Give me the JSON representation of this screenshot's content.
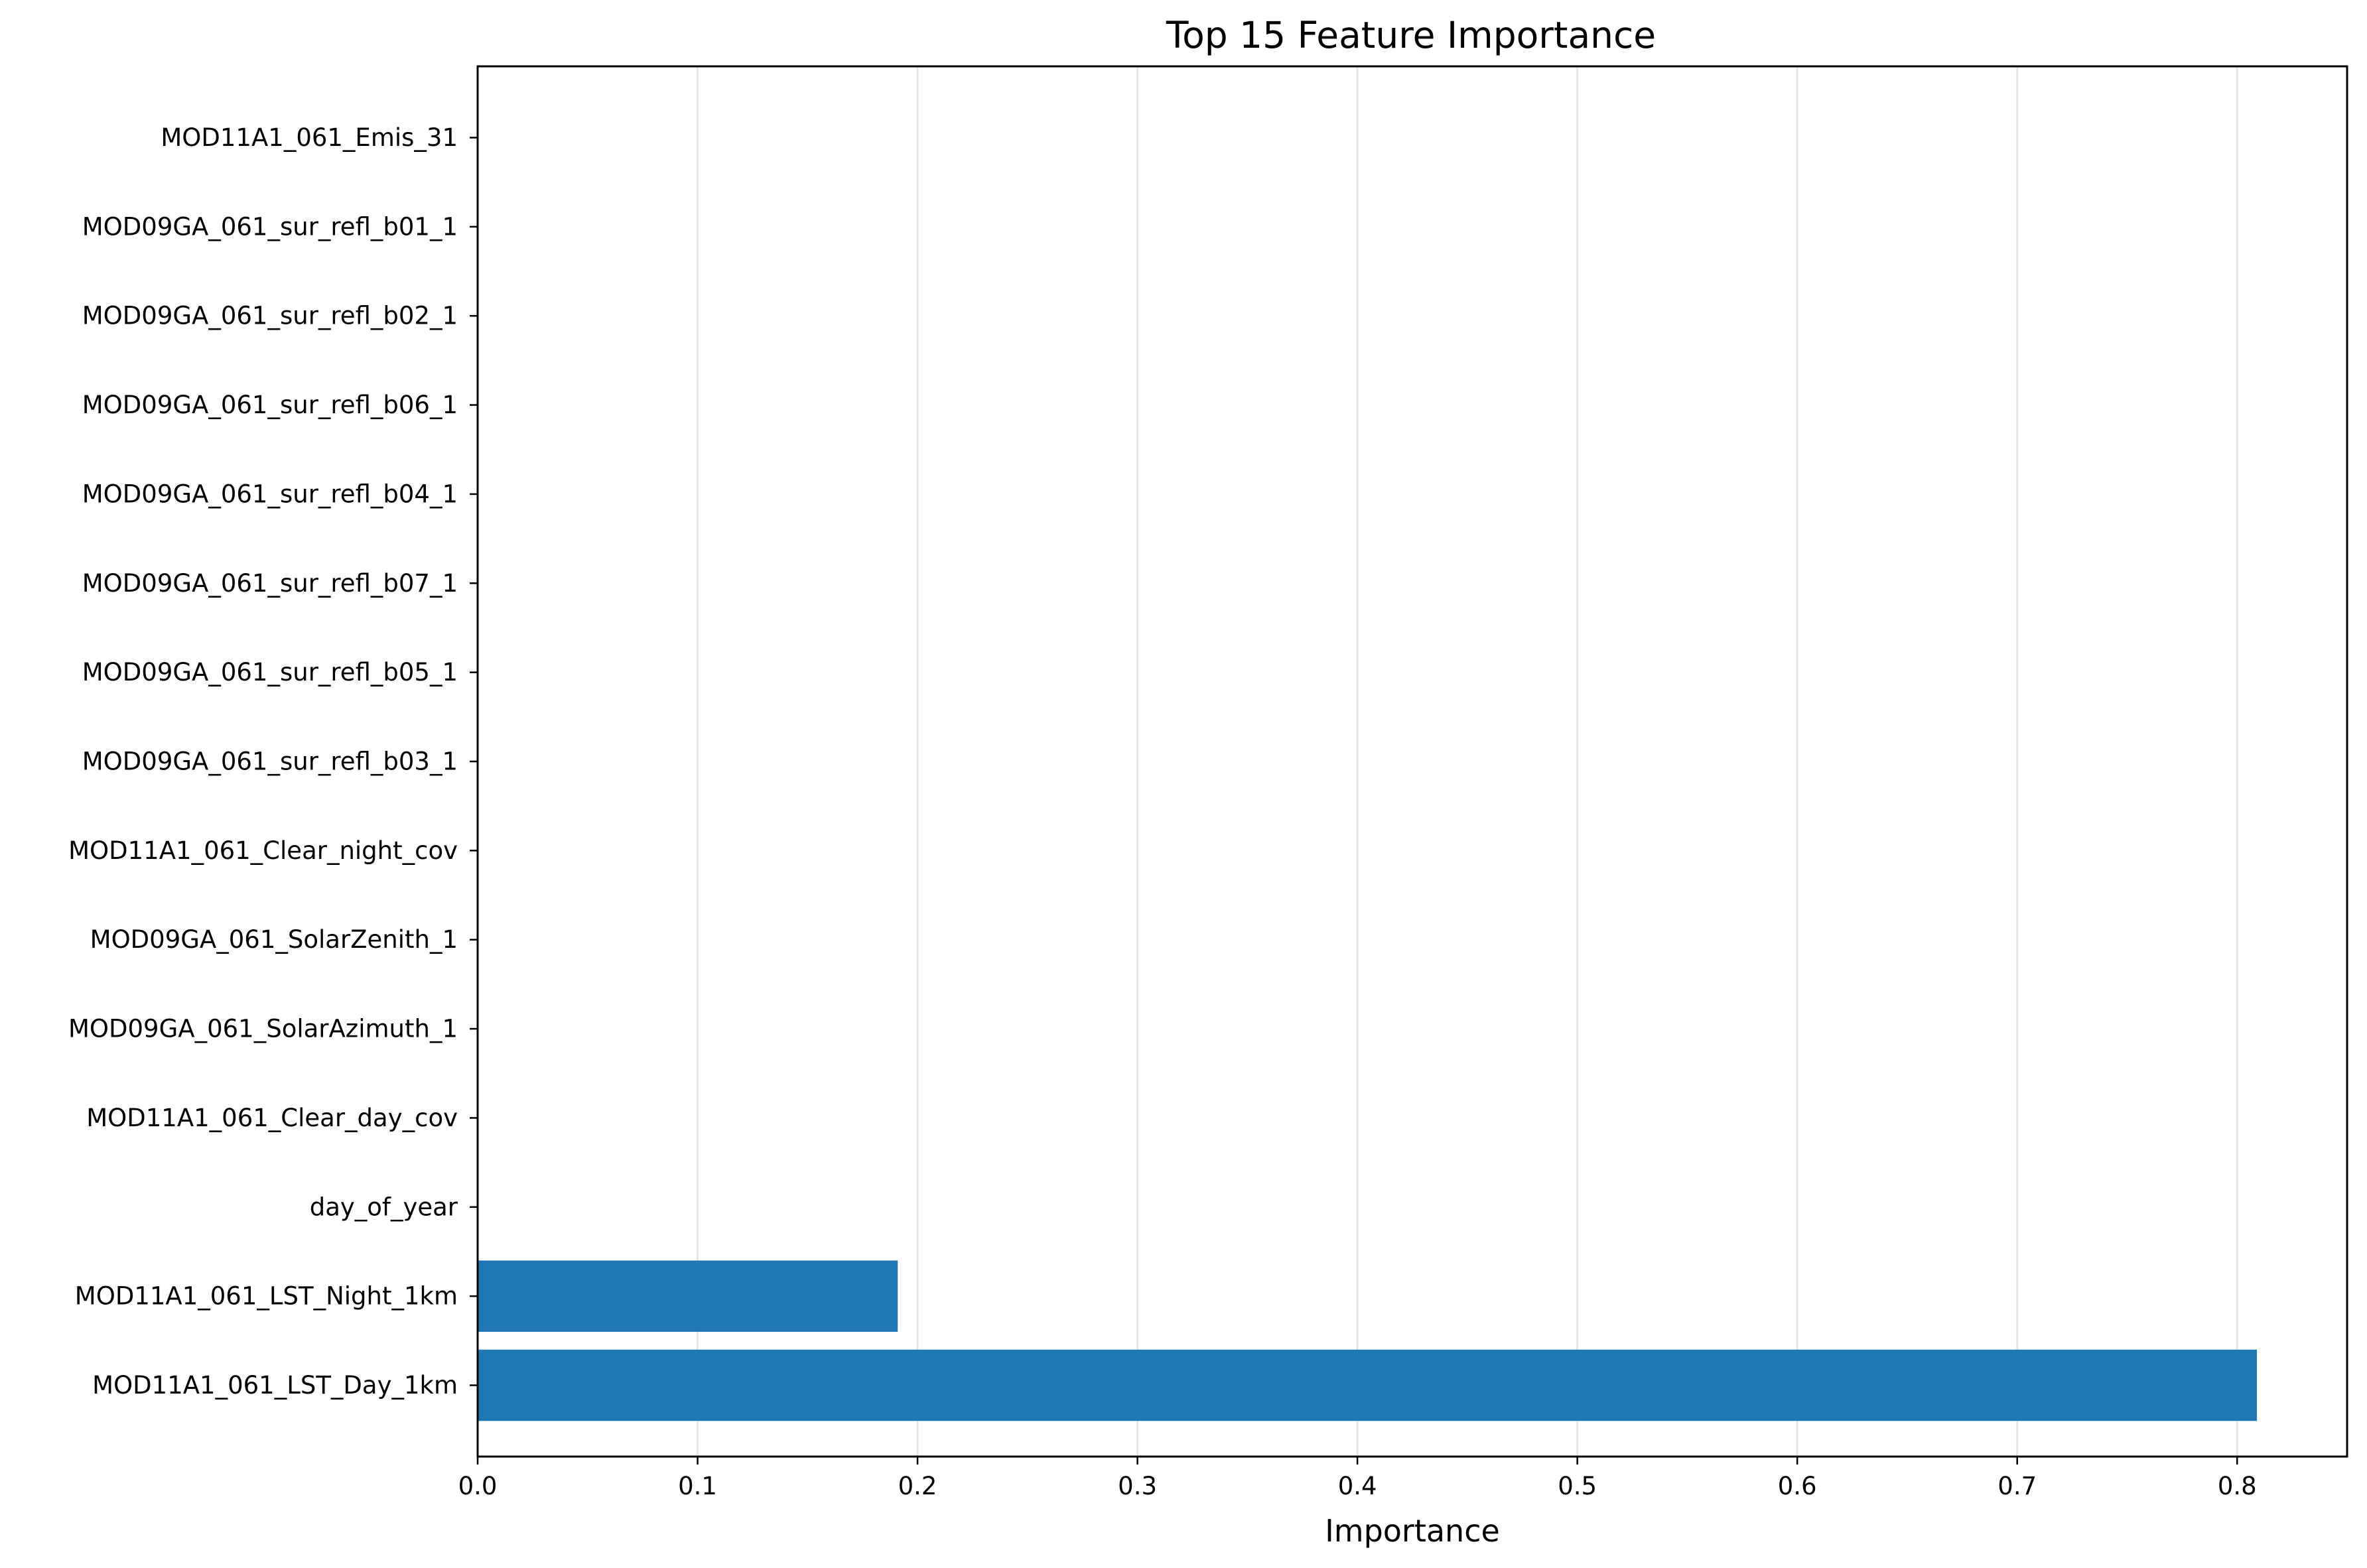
{
  "chart_data": {
    "type": "bar",
    "orientation": "horizontal",
    "title": "Top 15 Feature Importance",
    "xlabel": "Importance",
    "ylabel": "",
    "xlim": [
      0.0,
      0.85
    ],
    "xticks": [
      0.0,
      0.1,
      0.2,
      0.3,
      0.4,
      0.5,
      0.6,
      0.7,
      0.8
    ],
    "xtick_labels": [
      "0.0",
      "0.1",
      "0.2",
      "0.3",
      "0.4",
      "0.5",
      "0.6",
      "0.7",
      "0.8"
    ],
    "grid": "x",
    "bar_color": "#1f77b4",
    "categories": [
      "MOD11A1_061_LST_Day_1km",
      "MOD11A1_061_LST_Night_1km",
      "day_of_year",
      "MOD11A1_061_Clear_day_cov",
      "MOD09GA_061_SolarAzimuth_1",
      "MOD09GA_061_SolarZenith_1",
      "MOD11A1_061_Clear_night_cov",
      "MOD09GA_061_sur_refl_b03_1",
      "MOD09GA_061_sur_refl_b05_1",
      "MOD09GA_061_sur_refl_b07_1",
      "MOD09GA_061_sur_refl_b04_1",
      "MOD09GA_061_sur_refl_b06_1",
      "MOD09GA_061_sur_refl_b02_1",
      "MOD09GA_061_sur_refl_b01_1",
      "MOD11A1_061_Emis_31"
    ],
    "values": [
      0.809,
      0.191,
      0,
      0,
      0,
      0,
      0,
      0,
      0,
      0,
      0,
      0,
      0,
      0,
      0
    ]
  }
}
